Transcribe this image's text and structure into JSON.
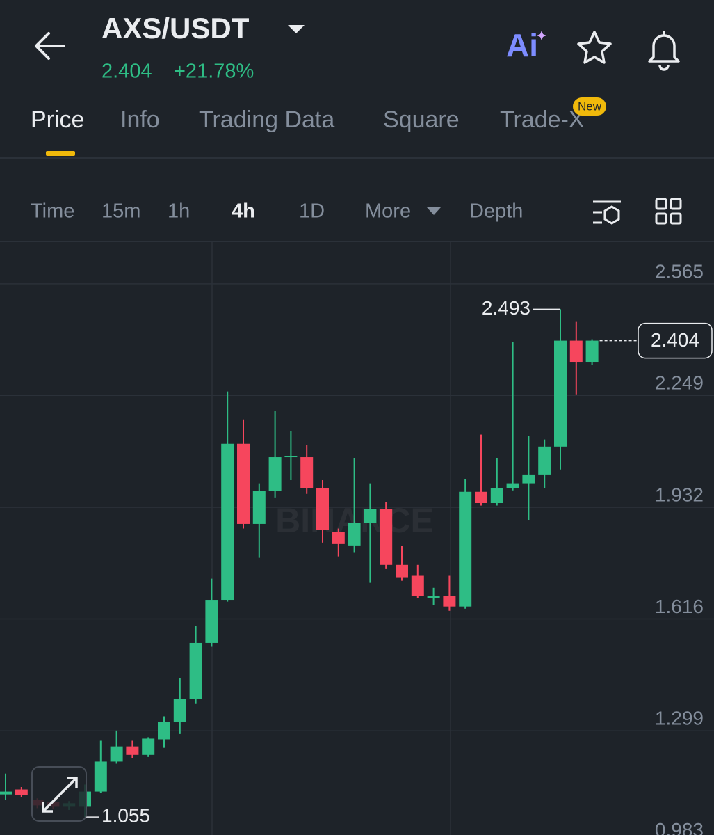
{
  "header": {
    "title": "AXS/USDT",
    "price": "2.404",
    "change": "+21.78%"
  },
  "tabs": {
    "items": [
      "Price",
      "Info",
      "Trading Data",
      "Square",
      "Trade-X"
    ],
    "badge": "New"
  },
  "intervals": [
    "Time",
    "15m",
    "1h",
    "4h",
    "1D",
    "More",
    "Depth"
  ],
  "chart_data": {
    "type": "candlestick",
    "watermark": "BINANCE",
    "up_color": "#2ebd85",
    "down_color": "#f6465d",
    "ylim": [
      1.004,
      2.683
    ],
    "yticks": [
      2.565,
      2.249,
      1.932,
      1.616,
      1.299,
      0.983
    ],
    "grid": true,
    "max_label": 2.493,
    "min_label": 1.055,
    "last_price": 2.404,
    "open": [
      1.119,
      1.133,
      1.103,
      1.098,
      1.084,
      1.084,
      1.127,
      1.212,
      1.255,
      1.231,
      1.275,
      1.324,
      1.389,
      1.548,
      1.67,
      2.112,
      1.885,
      1.978,
      2.074,
      2.074,
      1.986,
      1.862,
      1.824,
      1.887,
      1.927,
      1.769,
      1.738,
      1.676,
      1.68,
      1.651,
      1.976,
      1.944,
      1.986,
      2.0,
      2.025,
      2.104,
      2.404,
      2.344
    ],
    "high": [
      1.178,
      1.14,
      1.108,
      1.105,
      1.1,
      1.147,
      1.271,
      1.3,
      1.271,
      1.281,
      1.34,
      1.448,
      1.596,
      1.73,
      2.26,
      2.181,
      2.0,
      2.206,
      2.147,
      2.108,
      2.009,
      1.872,
      2.072,
      2.0,
      1.946,
      1.822,
      1.769,
      1.704,
      1.738,
      2.013,
      2.138,
      2.072,
      2.4,
      2.134,
      2.124,
      2.493,
      2.457,
      2.408
    ],
    "low": [
      1.103,
      1.112,
      1.08,
      1.078,
      1.075,
      1.055,
      1.123,
      1.206,
      1.221,
      1.225,
      1.251,
      1.29,
      1.375,
      1.537,
      1.665,
      1.872,
      1.789,
      1.96,
      2.009,
      1.97,
      1.832,
      1.793,
      1.803,
      1.718,
      1.757,
      1.724,
      1.674,
      1.655,
      1.639,
      1.645,
      1.937,
      1.937,
      1.98,
      1.895,
      1.986,
      2.039,
      2.252,
      2.336
    ],
    "close": [
      1.127,
      1.117,
      1.088,
      1.084,
      1.094,
      1.127,
      1.212,
      1.255,
      1.231,
      1.277,
      1.324,
      1.389,
      1.548,
      1.67,
      2.112,
      1.885,
      1.978,
      2.074,
      2.078,
      1.986,
      1.868,
      1.828,
      1.887,
      1.927,
      1.769,
      1.734,
      1.68,
      1.68,
      1.651,
      1.976,
      1.944,
      1.986,
      2.0,
      2.025,
      2.104,
      2.404,
      2.344,
      2.404
    ]
  }
}
